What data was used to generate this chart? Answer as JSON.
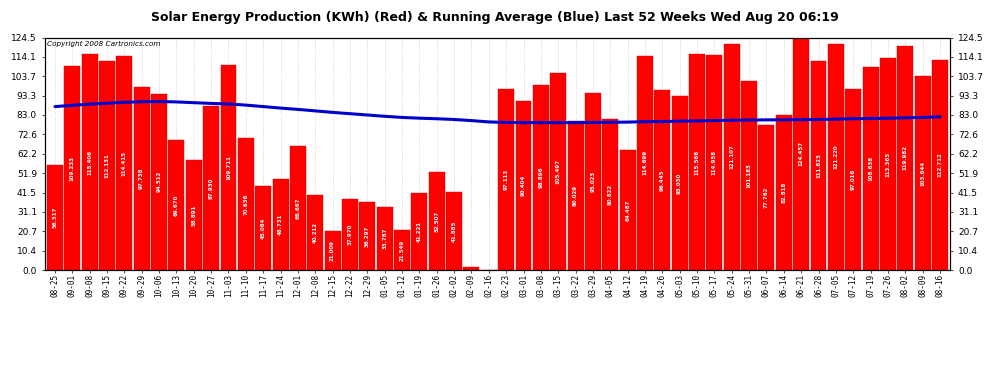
{
  "title": "Solar Energy Production (KWh) (Red) & Running Average (Blue) Last 52 Weeks Wed Aug 20 06:19",
  "copyright": "Copyright 2008 Cartronics.com",
  "bar_color": "#ff0000",
  "line_color": "#0000cc",
  "background_color": "#ffffff",
  "yticks": [
    0.0,
    10.4,
    20.7,
    31.1,
    41.5,
    51.9,
    62.2,
    72.6,
    83.0,
    93.3,
    103.7,
    114.1,
    124.5
  ],
  "labels": [
    "08-25",
    "09-01",
    "09-08",
    "09-15",
    "09-22",
    "09-29",
    "10-06",
    "10-13",
    "10-20",
    "10-27",
    "11-03",
    "11-10",
    "11-17",
    "11-24",
    "12-01",
    "12-08",
    "12-15",
    "12-22",
    "12-29",
    "01-05",
    "01-12",
    "01-19",
    "01-26",
    "02-02",
    "02-09",
    "02-16",
    "02-23",
    "03-01",
    "03-08",
    "03-15",
    "03-22",
    "03-29",
    "04-05",
    "04-12",
    "04-19",
    "04-26",
    "05-03",
    "05-10",
    "05-17",
    "05-24",
    "05-31",
    "06-07",
    "06-14",
    "06-21",
    "06-28",
    "07-05",
    "07-12",
    "07-19",
    "07-26",
    "08-02",
    "08-09",
    "08-16"
  ],
  "values": [
    56.317,
    109.233,
    115.406,
    112.131,
    114.415,
    97.738,
    94.512,
    69.67,
    58.891,
    87.93,
    109.711,
    70.636,
    45.084,
    48.731,
    66.667,
    40.212,
    21.009,
    37.97,
    36.297,
    33.787,
    21.549,
    41.221,
    52.507,
    41.885,
    1.413,
    0.0,
    97.113,
    90.404,
    98.896,
    105.497,
    80.029,
    95.023,
    80.822,
    64.487,
    114.699,
    96.445,
    93.03,
    115.568,
    114.958,
    121.107,
    101.183,
    77.762,
    82.818,
    124.457,
    111.823,
    121.22,
    97.016,
    108.638,
    113.365,
    119.982,
    103.644,
    112.712
  ],
  "running_avg": [
    87.5,
    88.2,
    88.8,
    89.3,
    89.8,
    90.1,
    90.2,
    90.0,
    89.6,
    89.2,
    88.9,
    88.3,
    87.5,
    86.7,
    86.0,
    85.2,
    84.4,
    83.7,
    83.0,
    82.3,
    81.7,
    81.3,
    81.0,
    80.6,
    80.0,
    79.3,
    79.0,
    78.9,
    78.9,
    78.9,
    78.9,
    79.0,
    79.1,
    79.2,
    79.4,
    79.5,
    79.7,
    79.8,
    80.0,
    80.2,
    80.3,
    80.4,
    80.4,
    80.5,
    80.6,
    80.8,
    81.0,
    81.1,
    81.3,
    81.5,
    81.7,
    82.0
  ],
  "ylim_max": 124.5,
  "title_fontsize": 9,
  "bar_label_fontsize": 4.0,
  "xlabel_fontsize": 5.5,
  "ytick_fontsize": 6.5
}
